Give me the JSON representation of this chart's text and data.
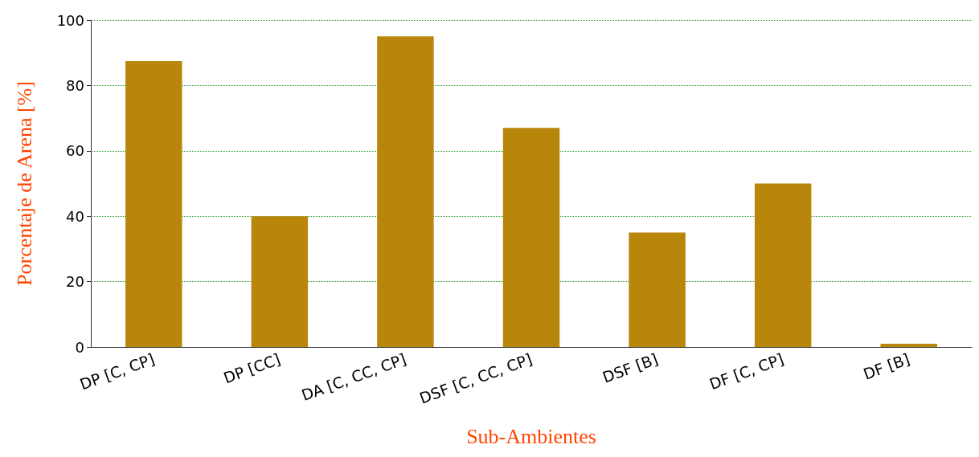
{
  "chart_data": {
    "type": "bar",
    "xlabel": "Sub-Ambientes",
    "ylabel": "Porcentaje de Arena [%]",
    "categories": [
      "DP [C, CP]",
      "DP [CC]",
      "DA [C, CC, CP]",
      "DSF [C, CC, CP]",
      "DSF [B]",
      "DF [C, CP]",
      "DF [B]"
    ],
    "values": [
      87.5,
      40,
      95,
      67,
      35,
      50,
      1
    ],
    "color": "#b8860b",
    "ylim": [
      0,
      100
    ],
    "yticks": [
      0,
      20,
      40,
      60,
      80,
      100
    ],
    "grid": "y"
  }
}
